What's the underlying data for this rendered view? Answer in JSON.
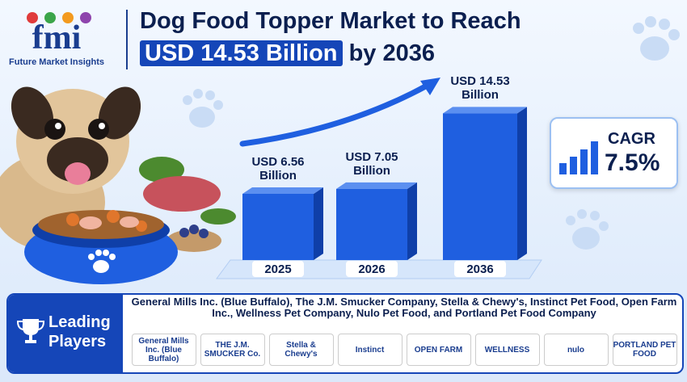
{
  "header": {
    "logo": "fmi",
    "company": "Future Market Insights"
  },
  "chart_data": {
    "type": "bar",
    "title": "Dog Food Topper Market to Reach",
    "title_highlight": "USD 14.53 Billion",
    "title_end": "by 2036",
    "categories": [
      "2025",
      "2026",
      "2036"
    ],
    "values": [
      6.56,
      7.05,
      14.53
    ],
    "value_labels": [
      "USD 6.56 Billion",
      "USD 7.05 Billion",
      "USD 14.53 Billion"
    ],
    "color": "#1f5fe0",
    "ylim": [
      0,
      16
    ]
  },
  "cagr": {
    "label": "CAGR",
    "value": "7.5%"
  },
  "leading_players": {
    "heading": "Leading Players",
    "text": "General Mills Inc. (Blue Buffalo), The J.M. Smucker Company, Stella & Chewy's, Instinct Pet Food, Open Farm Inc., Wellness Pet Company, Nulo Pet Food, and Portland Pet Food Company",
    "logos": [
      "General Mills Inc. (Blue Buffalo)",
      "THE J.M. SMUCKER Co.",
      "Stella & Chewy's",
      "Instinct",
      "OPEN FARM",
      "WELLNESS",
      "nulo",
      "PORTLAND PET FOOD"
    ]
  }
}
